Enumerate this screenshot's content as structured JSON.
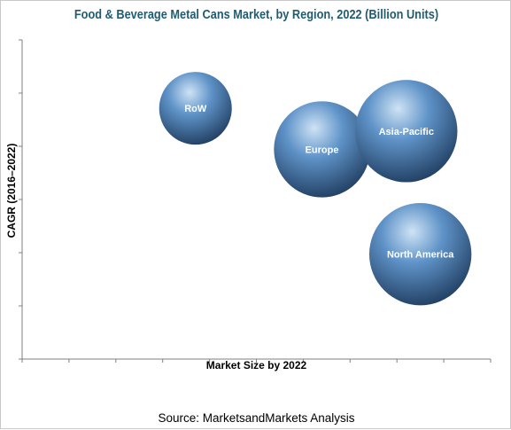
{
  "title": "Food & Beverage Metal Cans Market, by Region, 2022 (Billion Units)",
  "source": "Source: MarketsandMarkets Analysis",
  "colors": {
    "title": "#1f5c72",
    "bubble_light": "#cfe3f5",
    "bubble_mid": "#5f93c8",
    "bubble_dark": "#1e3a5c",
    "axis": "#7f7f7f"
  },
  "chart_data": {
    "type": "scatter",
    "variant": "bubble",
    "title": "Food & Beverage Metal Cans Market, by Region, 2022 (Billion Units)",
    "xlabel": "Market Size by 2022",
    "ylabel": "CAGR (2016–2022)",
    "xlim": [
      0,
      10
    ],
    "ylim": [
      0,
      7
    ],
    "grid": false,
    "legend": "none",
    "tick_labels": "none",
    "points": [
      {
        "label": "RoW",
        "x": 3.7,
        "y": 5.5,
        "size": 1.0
      },
      {
        "label": "Europe",
        "x": 6.4,
        "y": 4.6,
        "size": 1.75
      },
      {
        "label": "Asia-Pacific",
        "x": 8.2,
        "y": 5.0,
        "size": 1.98
      },
      {
        "label": "North America",
        "x": 8.5,
        "y": 2.3,
        "size": 1.98
      }
    ]
  }
}
